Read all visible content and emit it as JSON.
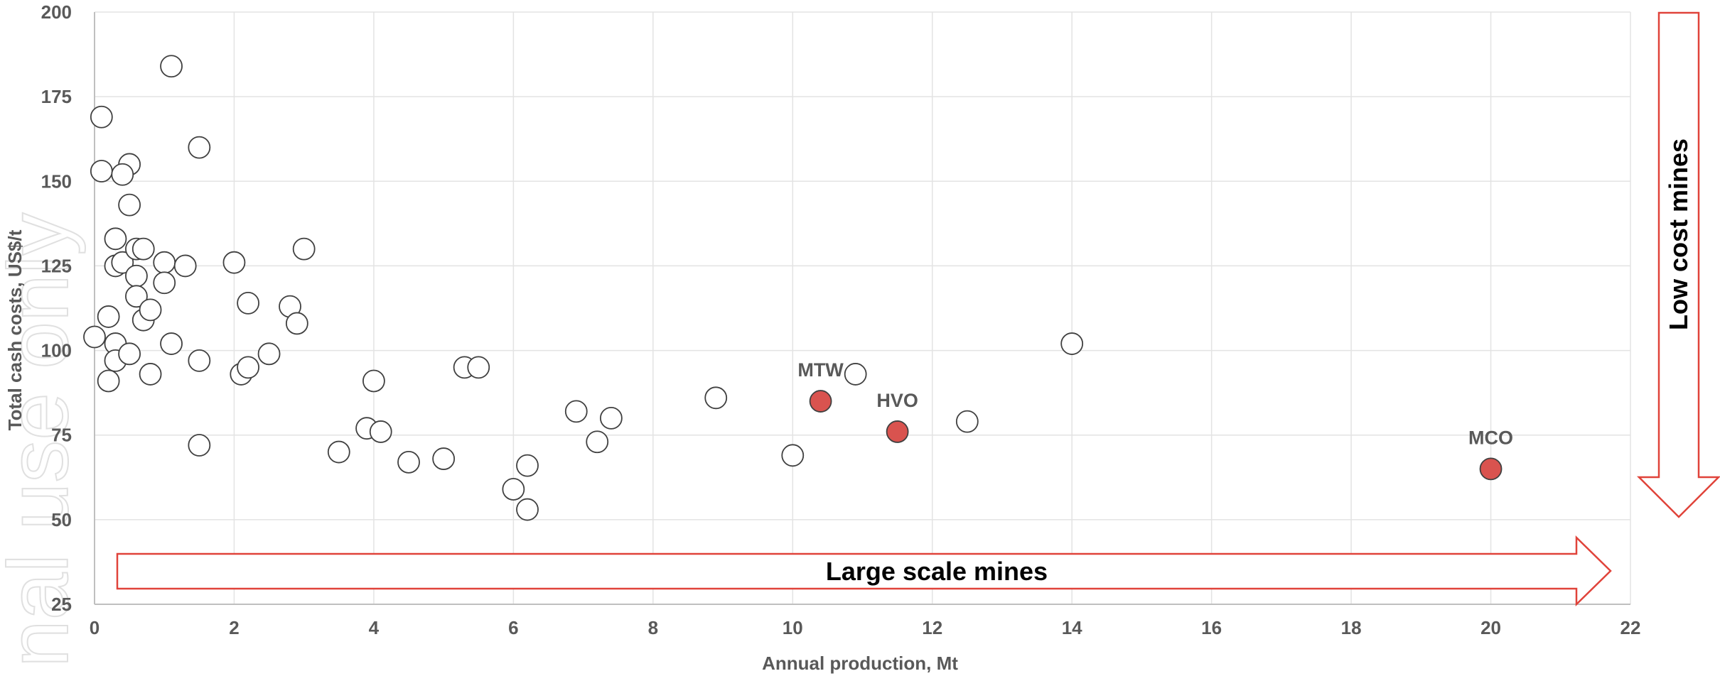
{
  "chart_data": {
    "type": "scatter",
    "xlabel": "Annual production, Mt",
    "ylabel": "Total cash costs, US$/t",
    "xlim": [
      0,
      22
    ],
    "ylim": [
      25,
      200
    ],
    "x_ticks": [
      0,
      2,
      4,
      6,
      8,
      10,
      12,
      14,
      16,
      18,
      20,
      22
    ],
    "y_ticks": [
      25,
      50,
      75,
      100,
      125,
      150,
      175,
      200
    ],
    "grid": true,
    "colors": {
      "marker_fill": "#ffffff",
      "marker_stroke": "#404040",
      "highlight_fill": "#d9534f",
      "arrow_stroke": "#e0433a",
      "grid": "#e3e3e3"
    },
    "series": [
      {
        "points": [
          [
            0.1,
            169
          ],
          [
            0.1,
            153
          ],
          [
            0.5,
            155
          ],
          [
            0.4,
            152
          ],
          [
            0.5,
            143
          ],
          [
            1.1,
            184
          ],
          [
            1.5,
            160
          ],
          [
            0.3,
            133
          ],
          [
            0.3,
            125
          ],
          [
            0.4,
            126
          ],
          [
            0.6,
            130
          ],
          [
            0.7,
            130
          ],
          [
            0.6,
            122
          ],
          [
            0.6,
            116
          ],
          [
            0.7,
            109
          ],
          [
            0.8,
            112
          ],
          [
            1.0,
            126
          ],
          [
            1.0,
            120
          ],
          [
            1.3,
            125
          ],
          [
            0.0,
            104
          ],
          [
            0.2,
            110
          ],
          [
            0.3,
            102
          ],
          [
            0.3,
            97
          ],
          [
            0.5,
            99
          ],
          [
            0.2,
            91
          ],
          [
            0.8,
            93
          ],
          [
            1.1,
            102
          ],
          [
            1.5,
            97
          ],
          [
            1.5,
            72
          ],
          [
            2.0,
            126
          ],
          [
            2.2,
            114
          ],
          [
            2.1,
            93
          ],
          [
            2.2,
            95
          ],
          [
            2.5,
            99
          ],
          [
            2.8,
            113
          ],
          [
            2.9,
            108
          ],
          [
            3.0,
            130
          ],
          [
            3.5,
            70
          ],
          [
            3.9,
            77
          ],
          [
            4.0,
            91
          ],
          [
            4.1,
            76
          ],
          [
            4.5,
            67
          ],
          [
            5.0,
            68
          ],
          [
            5.3,
            95
          ],
          [
            5.5,
            95
          ],
          [
            6.0,
            59
          ],
          [
            6.2,
            66
          ],
          [
            6.2,
            53
          ],
          [
            6.9,
            82
          ],
          [
            7.2,
            73
          ],
          [
            7.4,
            80
          ],
          [
            8.9,
            86
          ],
          [
            10.0,
            69
          ],
          [
            10.9,
            93
          ],
          [
            12.5,
            79
          ],
          [
            14.0,
            102
          ]
        ]
      },
      {
        "highlight": true,
        "points": [
          {
            "label": "MTW",
            "x": 10.4,
            "y": 85
          },
          {
            "label": "HVO",
            "x": 11.5,
            "y": 76
          },
          {
            "label": "MCO",
            "x": 20.0,
            "y": 65
          }
        ]
      }
    ],
    "annotations": {
      "horizontal_arrow": "Large scale mines",
      "vertical_arrow": "Low cost mines"
    },
    "watermark": "nal use only"
  }
}
